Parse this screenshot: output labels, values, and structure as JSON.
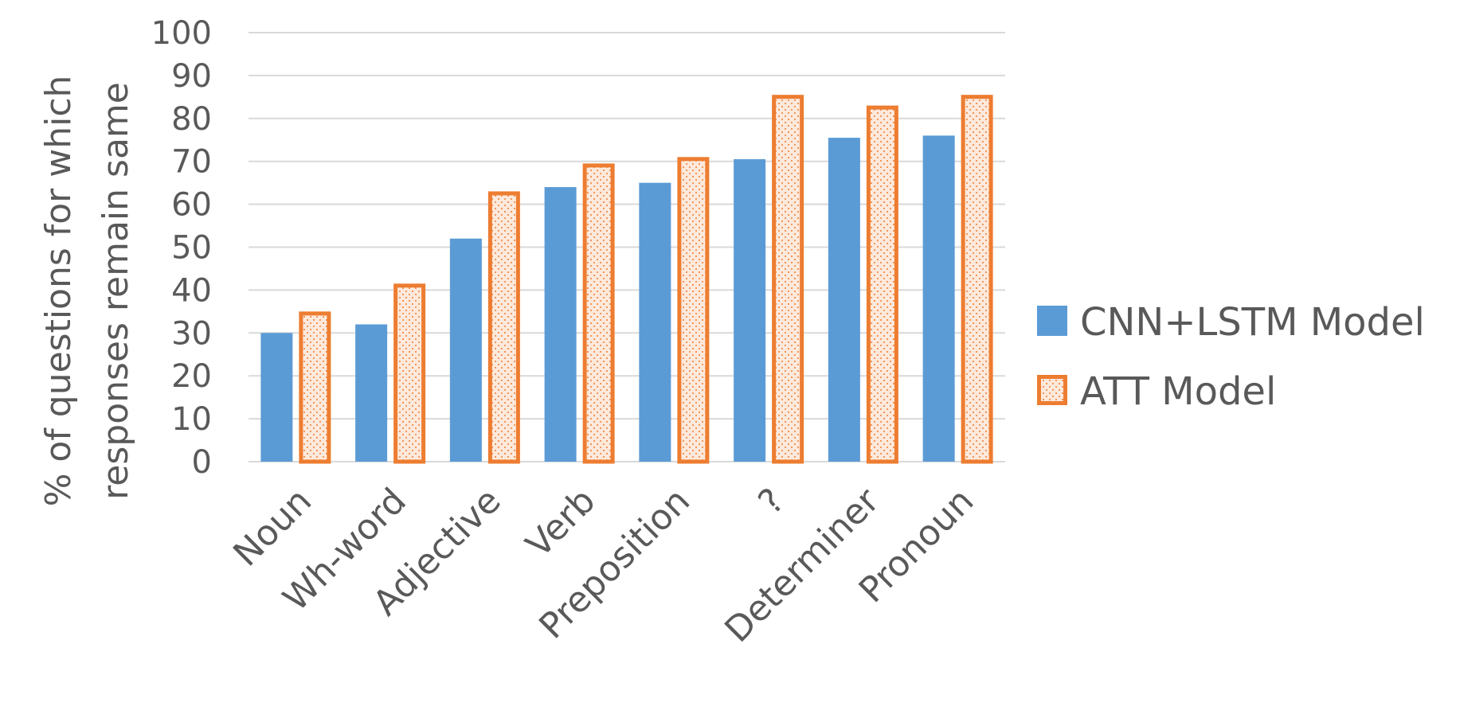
{
  "chart_data": {
    "type": "bar",
    "categories": [
      "Noun",
      "Wh-word",
      "Adjective",
      "Verb",
      "Preposition",
      "?",
      "Determiner",
      "Pronoun"
    ],
    "series": [
      {
        "name": "CNN+LSTM Model",
        "values": [
          30,
          32,
          52,
          64,
          65,
          70.5,
          75.5,
          76
        ],
        "color": "#5b9bd5"
      },
      {
        "name": "ATT Model",
        "values": [
          35,
          41.5,
          63,
          69.5,
          71,
          85.5,
          83,
          85.5
        ],
        "color": "#ed7d31"
      }
    ],
    "ylabel_lines": [
      "% of questions for which",
      "responses remain same"
    ],
    "xlabel": "",
    "ylim": [
      0,
      100
    ],
    "yticks": [
      "0",
      "10",
      "20",
      "30",
      "40",
      "50",
      "60",
      "70",
      "80",
      "90",
      "100"
    ],
    "grid": true,
    "legend_position": "right"
  }
}
